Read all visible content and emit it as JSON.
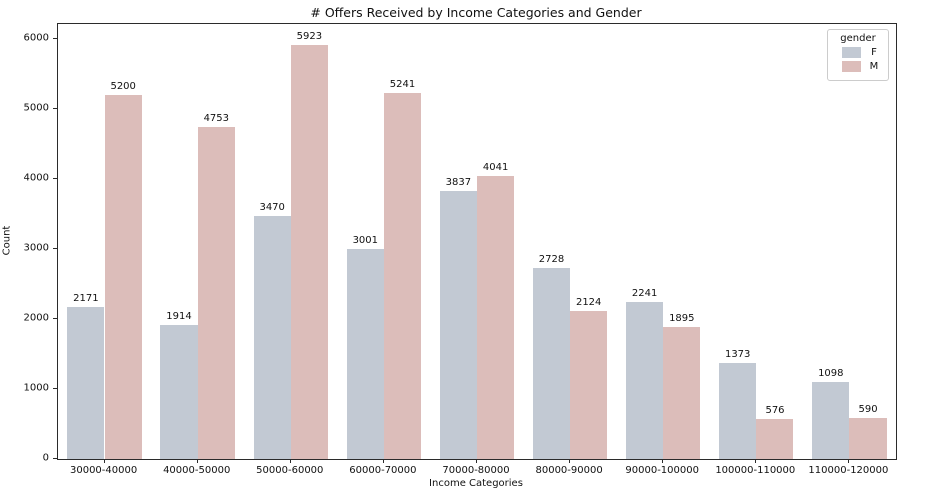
{
  "chart_data": {
    "type": "bar",
    "title": "# Offers Received by Income Categories and Gender",
    "xlabel": "Income Categories",
    "ylabel": "Count",
    "categories": [
      "30000-40000",
      "40000-50000",
      "50000-60000",
      "60000-70000",
      "70000-80000",
      "80000-90000",
      "90000-100000",
      "100000-110000",
      "110000-120000"
    ],
    "series": [
      {
        "name": "F",
        "color": "#c2c9d3",
        "values": [
          2171,
          1914,
          3470,
          3001,
          3837,
          2728,
          2241,
          1373,
          1098
        ]
      },
      {
        "name": "M",
        "color": "#dcbdba",
        "values": [
          5200,
          4753,
          5923,
          5241,
          4041,
          2124,
          1895,
          576,
          590
        ]
      }
    ],
    "yticks": [
      0,
      1000,
      2000,
      3000,
      4000,
      5000,
      6000
    ],
    "ylim": [
      0,
      6220
    ],
    "grid": false,
    "bar_labels": true,
    "legend": {
      "title": "gender",
      "position": "upper right",
      "entries": [
        "F",
        "M"
      ]
    }
  }
}
